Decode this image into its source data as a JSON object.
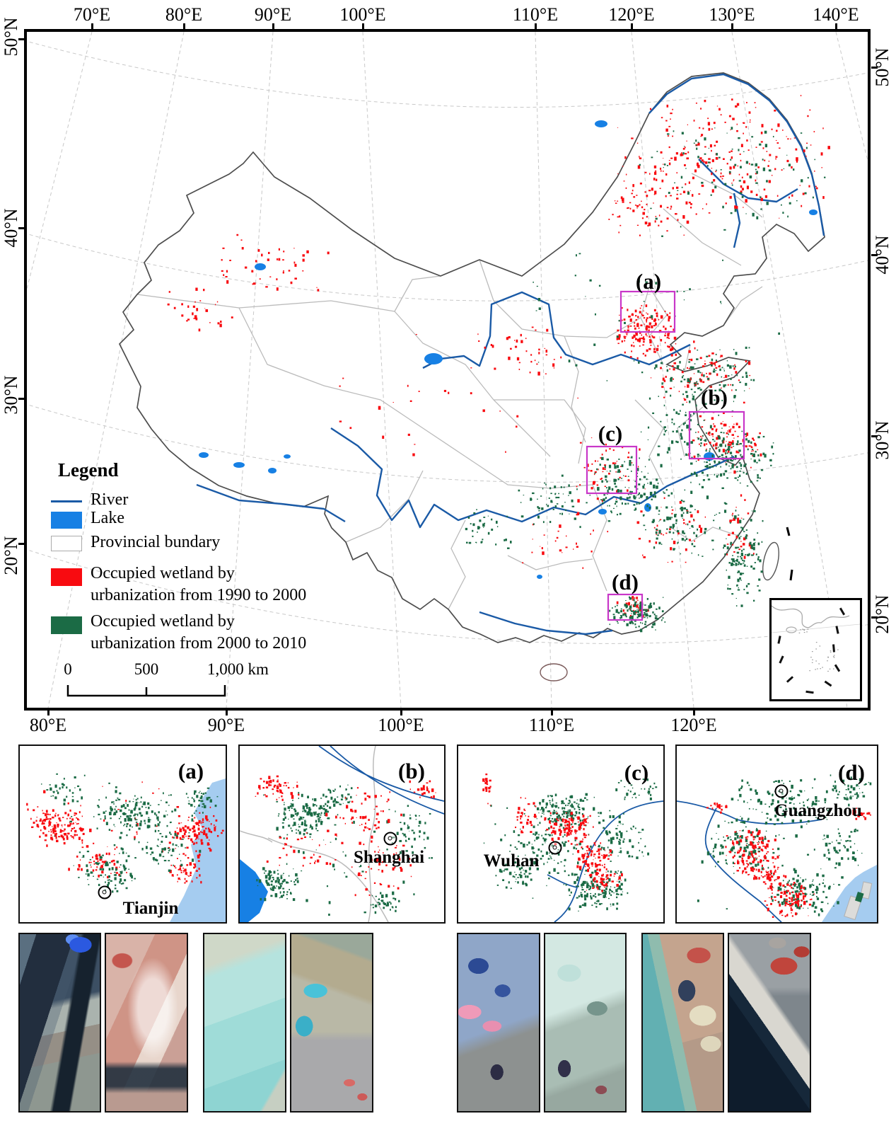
{
  "map": {
    "axes": {
      "top": [
        "70°E",
        "80°E",
        "90°E",
        "100°E",
        "110°E",
        "120°E",
        "130°E",
        "140°E"
      ],
      "bottom": [
        "80°E",
        "90°E",
        "100°E",
        "110°E",
        "120°E"
      ],
      "left": [
        "50°N",
        "40°N",
        "30°N",
        "20°N"
      ],
      "right": [
        "50°N",
        "40°N",
        "30°N",
        "20°N"
      ]
    },
    "callouts": [
      "(a)",
      "(b)",
      "(c)",
      "(d)"
    ],
    "legend": {
      "title": "Legend",
      "river": "River",
      "lake": "Lake",
      "provincial": "Provincial bundary",
      "red": "Occupied wetland by urbanization from 1990 to 2000",
      "green": "Occupied wetland by urbanization from 2000 to 2010"
    },
    "scalebar": {
      "t0": "0",
      "t500": "500",
      "t1000": "1,000 km"
    }
  },
  "panels": [
    {
      "label": "(a)",
      "city": "Tianjin"
    },
    {
      "label": "(b)",
      "city": "Shanghai"
    },
    {
      "label": "(c)",
      "city": "Wuhan"
    },
    {
      "label": "(d)",
      "city": "Guangzhou"
    }
  ],
  "colors": {
    "red": "#F80B10",
    "green": "#1B6B45",
    "river": "#1A5AA6",
    "lake": "#1780E4",
    "sea": "#A5CCF0",
    "province": "#BBBBBB",
    "nation": "#4D4D4D",
    "callout_box": "#C837C8"
  }
}
